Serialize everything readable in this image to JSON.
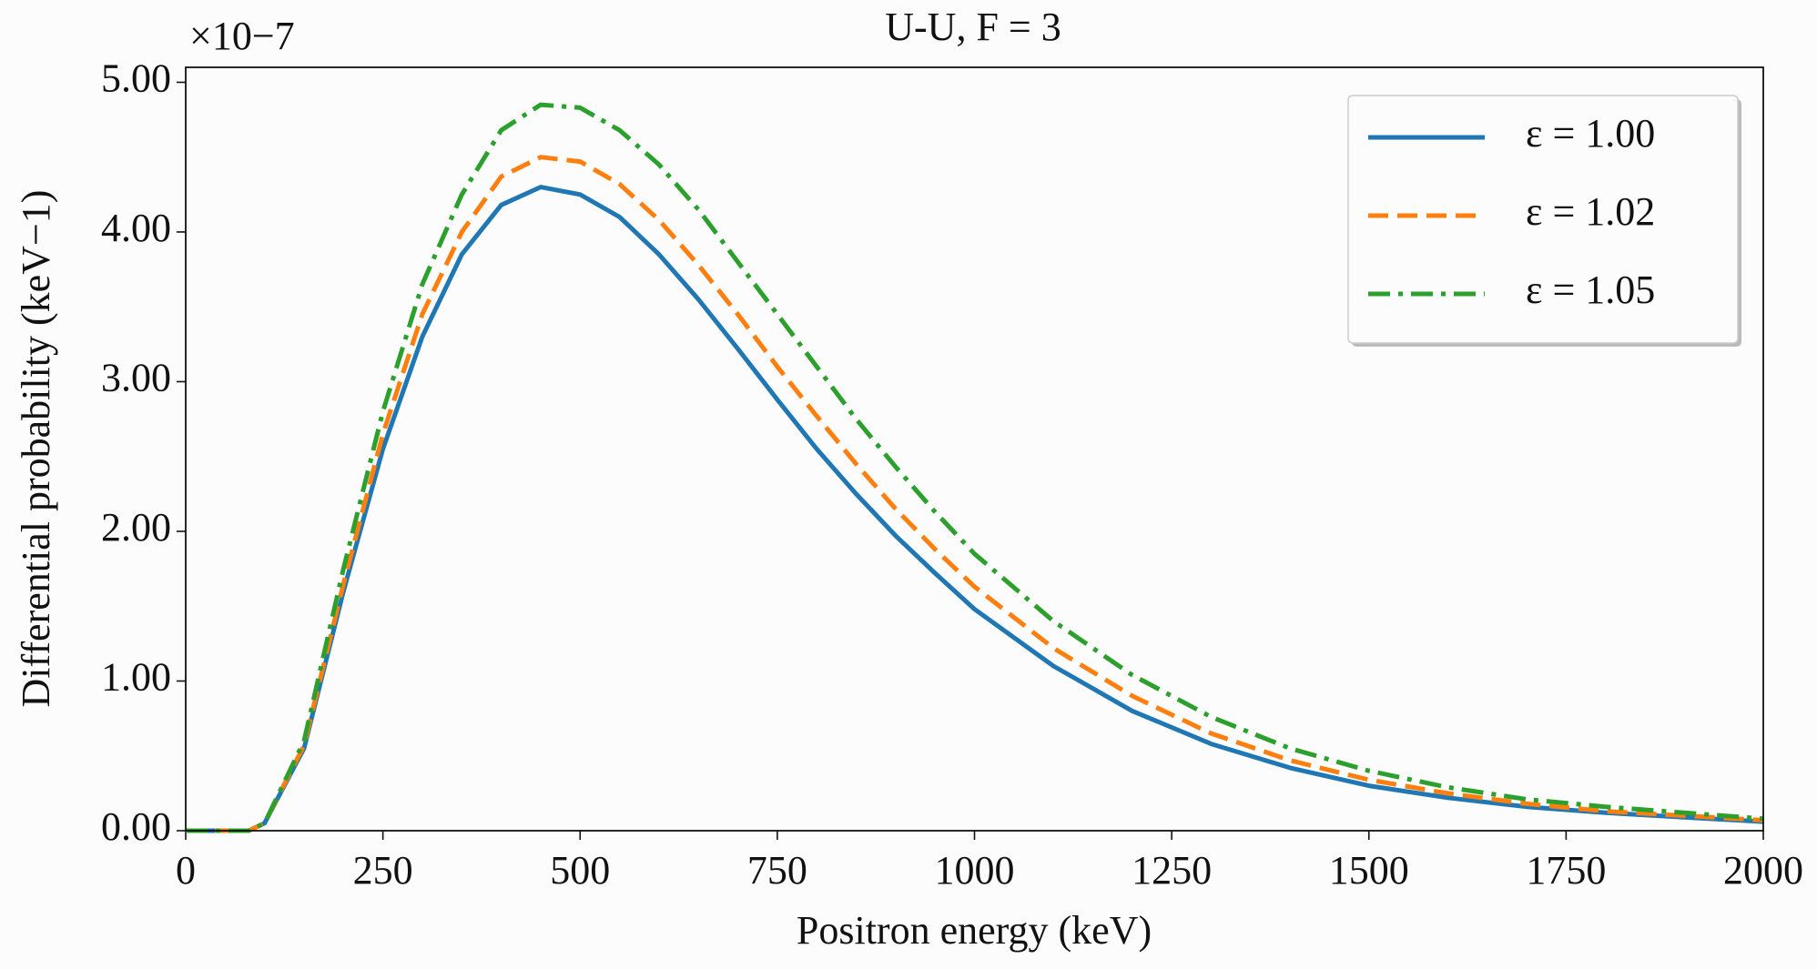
{
  "chart_data": {
    "type": "line",
    "title": "U-U, F = 3",
    "axis_multiplier": "×10−7",
    "xlabel": "Positron energy (keV)",
    "ylabel": "Differential probability (keV−1)",
    "x": [
      0,
      50,
      80,
      100,
      150,
      200,
      250,
      300,
      350,
      400,
      450,
      500,
      550,
      600,
      650,
      700,
      750,
      800,
      850,
      900,
      950,
      1000,
      1100,
      1200,
      1300,
      1400,
      1500,
      1600,
      1700,
      1800,
      1900,
      2000
    ],
    "series": [
      {
        "name": "ε = 1.00",
        "color": "#1f77b4",
        "dash": "solid",
        "values": [
          0,
          0,
          0,
          0.05,
          0.55,
          1.6,
          2.55,
          3.3,
          3.85,
          4.18,
          4.3,
          4.25,
          4.1,
          3.85,
          3.55,
          3.22,
          2.88,
          2.55,
          2.25,
          1.97,
          1.72,
          1.48,
          1.1,
          0.8,
          0.58,
          0.42,
          0.3,
          0.22,
          0.16,
          0.12,
          0.09,
          0.06
        ]
      },
      {
        "name": "ε = 1.02",
        "color": "#ff7f0e",
        "dash": "dashed",
        "values": [
          0,
          0,
          0,
          0.05,
          0.57,
          1.65,
          2.65,
          3.45,
          4.0,
          4.37,
          4.5,
          4.47,
          4.32,
          4.08,
          3.78,
          3.45,
          3.1,
          2.77,
          2.45,
          2.15,
          1.88,
          1.63,
          1.22,
          0.9,
          0.65,
          0.47,
          0.34,
          0.25,
          0.18,
          0.13,
          0.1,
          0.07
        ]
      },
      {
        "name": "ε = 1.05",
        "color": "#2ca02c",
        "dash": "dashdot",
        "values": [
          0,
          0,
          0,
          0.05,
          0.6,
          1.75,
          2.8,
          3.65,
          4.25,
          4.68,
          4.85,
          4.83,
          4.68,
          4.45,
          4.15,
          3.8,
          3.45,
          3.1,
          2.75,
          2.43,
          2.13,
          1.85,
          1.4,
          1.04,
          0.76,
          0.55,
          0.4,
          0.29,
          0.21,
          0.16,
          0.12,
          0.08
        ]
      }
    ],
    "xlim": [
      0,
      2000
    ],
    "xticks": [
      0,
      250,
      500,
      750,
      1000,
      1250,
      1500,
      1750,
      2000
    ],
    "ylim": [
      0,
      5.1
    ],
    "yticks": [
      {
        "value": 0,
        "label": "0.00"
      },
      {
        "value": 1,
        "label": "1.00"
      },
      {
        "value": 2,
        "label": "2.00"
      },
      {
        "value": 3,
        "label": "3.00"
      },
      {
        "value": 4,
        "label": "4.00"
      },
      {
        "value": 5,
        "label": "5.00"
      }
    ],
    "grid": false,
    "legend": "upper right"
  }
}
